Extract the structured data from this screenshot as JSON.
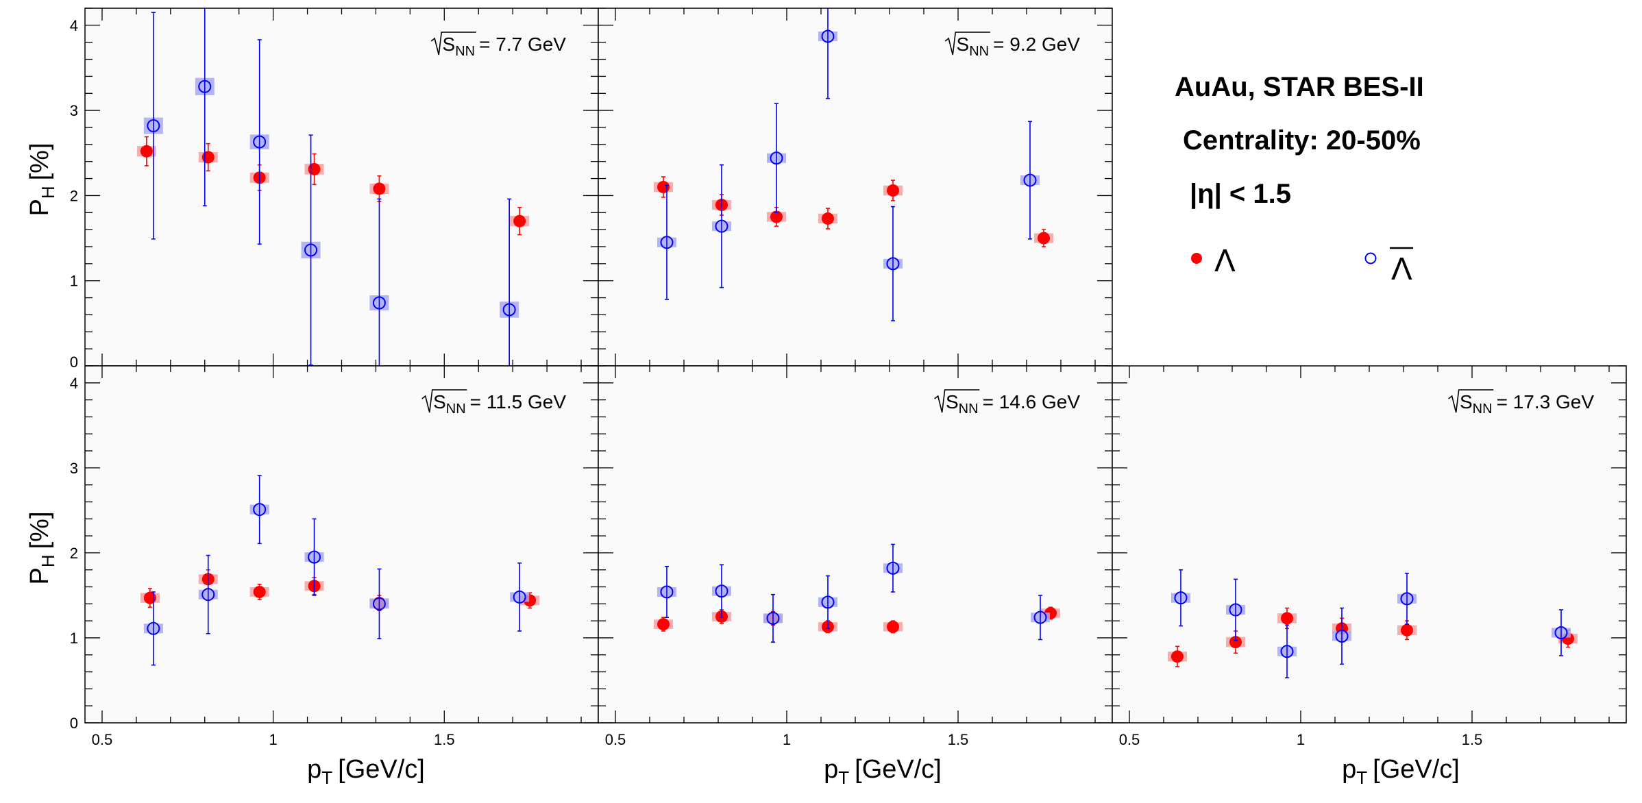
{
  "chart_data": {
    "type": "scatter",
    "layout": "multi-panel",
    "xlabel_main": "p",
    "xlabel_sub": "T",
    "xlabel_unit": "[GeV/c]",
    "ylabel_main": "P",
    "ylabel_sub": "H",
    "ylabel_unit": "[%]",
    "xlim": [
      0.45,
      1.95
    ],
    "ylim": [
      0,
      4.2
    ],
    "x_ticks": [
      "0.5",
      "1",
      "1.5"
    ],
    "y_ticks": [
      "0",
      "1",
      "2",
      "3",
      "4"
    ],
    "legend": {
      "title_lines": [
        "AuAu, STAR BES-II",
        "Centrality: 20-50%",
        "|η| < 1.5"
      ],
      "entries": [
        "Λ",
        "Λ"
      ]
    },
    "colors": {
      "lambda": "#ff0000",
      "antilambda": "#0000ff",
      "lambda_sys": "#f4a0a0",
      "antilambda_sys": "#a8a8ee"
    },
    "panels": [
      {
        "energy_sqrt": "S",
        "energy_sub": "NN",
        "energy_value": "= 7.7 GeV",
        "series": [
          {
            "name": "Λ",
            "points": [
              {
                "x": 0.63,
                "y": 2.52,
                "err": 0.17
              },
              {
                "x": 0.81,
                "y": 2.45,
                "err": 0.16
              },
              {
                "x": 0.96,
                "y": 2.21,
                "err": 0.15
              },
              {
                "x": 1.12,
                "y": 2.31,
                "err": 0.18
              },
              {
                "x": 1.31,
                "y": 2.08,
                "err": 0.15
              },
              {
                "x": 1.72,
                "y": 1.7,
                "err": 0.16
              }
            ]
          },
          {
            "name": "Λ",
            "points": [
              {
                "x": 0.65,
                "y": 2.82,
                "err": 1.33
              },
              {
                "x": 0.8,
                "y": 3.28,
                "err": 1.4
              },
              {
                "x": 0.96,
                "y": 2.63,
                "err": 1.2
              },
              {
                "x": 1.11,
                "y": 1.36,
                "err": 1.35
              },
              {
                "x": 1.31,
                "y": 0.74,
                "err": 1.22
              },
              {
                "x": 1.69,
                "y": 0.66,
                "err": 1.3
              }
            ]
          }
        ]
      },
      {
        "energy_sqrt": "S",
        "energy_sub": "NN",
        "energy_value": "= 9.2 GeV",
        "series": [
          {
            "name": "Λ",
            "points": [
              {
                "x": 0.64,
                "y": 2.1,
                "err": 0.12
              },
              {
                "x": 0.81,
                "y": 1.89,
                "err": 0.12
              },
              {
                "x": 0.97,
                "y": 1.75,
                "err": 0.11
              },
              {
                "x": 1.12,
                "y": 1.73,
                "err": 0.12
              },
              {
                "x": 1.31,
                "y": 2.06,
                "err": 0.12
              },
              {
                "x": 1.75,
                "y": 1.5,
                "err": 0.1
              }
            ]
          },
          {
            "name": "Λ",
            "points": [
              {
                "x": 0.65,
                "y": 1.45,
                "err": 0.67
              },
              {
                "x": 0.81,
                "y": 1.64,
                "err": 0.72
              },
              {
                "x": 0.97,
                "y": 2.44,
                "err": 0.64
              },
              {
                "x": 1.12,
                "y": 3.87,
                "err": 0.73
              },
              {
                "x": 1.31,
                "y": 1.2,
                "err": 0.67
              },
              {
                "x": 1.71,
                "y": 2.18,
                "err": 0.69
              }
            ]
          }
        ]
      },
      {
        "energy_sqrt": "S",
        "energy_sub": "NN",
        "energy_value": "= 11.5 GeV",
        "series": [
          {
            "name": "Λ",
            "points": [
              {
                "x": 0.64,
                "y": 1.47,
                "err": 0.11
              },
              {
                "x": 0.81,
                "y": 1.69,
                "err": 0.11
              },
              {
                "x": 0.96,
                "y": 1.54,
                "err": 0.09
              },
              {
                "x": 1.12,
                "y": 1.61,
                "err": 0.1
              },
              {
                "x": 1.31,
                "y": 1.41,
                "err": 0.09
              },
              {
                "x": 1.75,
                "y": 1.44,
                "err": 0.09
              }
            ]
          },
          {
            "name": "Λ",
            "points": [
              {
                "x": 0.65,
                "y": 1.11,
                "err": 0.43
              },
              {
                "x": 0.81,
                "y": 1.51,
                "err": 0.46
              },
              {
                "x": 0.96,
                "y": 2.51,
                "err": 0.4
              },
              {
                "x": 1.12,
                "y": 1.95,
                "err": 0.45
              },
              {
                "x": 1.31,
                "y": 1.4,
                "err": 0.41
              },
              {
                "x": 1.72,
                "y": 1.48,
                "err": 0.4
              }
            ]
          }
        ]
      },
      {
        "energy_sqrt": "S",
        "energy_sub": "NN",
        "energy_value": "= 14.6 GeV",
        "series": [
          {
            "name": "Λ",
            "points": [
              {
                "x": 0.64,
                "y": 1.16,
                "err": 0.08
              },
              {
                "x": 0.81,
                "y": 1.25,
                "err": 0.08
              },
              {
                "x": 0.96,
                "y": 1.23,
                "err": 0.08
              },
              {
                "x": 1.12,
                "y": 1.13,
                "err": 0.07
              },
              {
                "x": 1.31,
                "y": 1.13,
                "err": 0.07
              },
              {
                "x": 1.77,
                "y": 1.29,
                "err": 0.07
              }
            ]
          },
          {
            "name": "Λ",
            "points": [
              {
                "x": 0.65,
                "y": 1.54,
                "err": 0.3
              },
              {
                "x": 0.81,
                "y": 1.55,
                "err": 0.31
              },
              {
                "x": 0.96,
                "y": 1.23,
                "err": 0.28
              },
              {
                "x": 1.12,
                "y": 1.42,
                "err": 0.31
              },
              {
                "x": 1.31,
                "y": 1.82,
                "err": 0.28
              },
              {
                "x": 1.74,
                "y": 1.24,
                "err": 0.26
              }
            ]
          }
        ]
      },
      {
        "energy_sqrt": "S",
        "energy_sub": "NN",
        "energy_value": "= 17.3 GeV",
        "series": [
          {
            "name": "Λ",
            "points": [
              {
                "x": 0.64,
                "y": 0.78,
                "err": 0.12
              },
              {
                "x": 0.81,
                "y": 0.95,
                "err": 0.13
              },
              {
                "x": 0.96,
                "y": 1.23,
                "err": 0.12
              },
              {
                "x": 1.12,
                "y": 1.11,
                "err": 0.12
              },
              {
                "x": 1.31,
                "y": 1.09,
                "err": 0.11
              },
              {
                "x": 1.78,
                "y": 0.99,
                "err": 0.1
              }
            ]
          },
          {
            "name": "Λ",
            "points": [
              {
                "x": 0.65,
                "y": 1.47,
                "err": 0.33
              },
              {
                "x": 0.81,
                "y": 1.33,
                "err": 0.36
              },
              {
                "x": 0.96,
                "y": 0.84,
                "err": 0.31
              },
              {
                "x": 1.12,
                "y": 1.02,
                "err": 0.33
              },
              {
                "x": 1.31,
                "y": 1.46,
                "err": 0.3
              },
              {
                "x": 1.76,
                "y": 1.06,
                "err": 0.27
              }
            ]
          }
        ]
      }
    ]
  }
}
